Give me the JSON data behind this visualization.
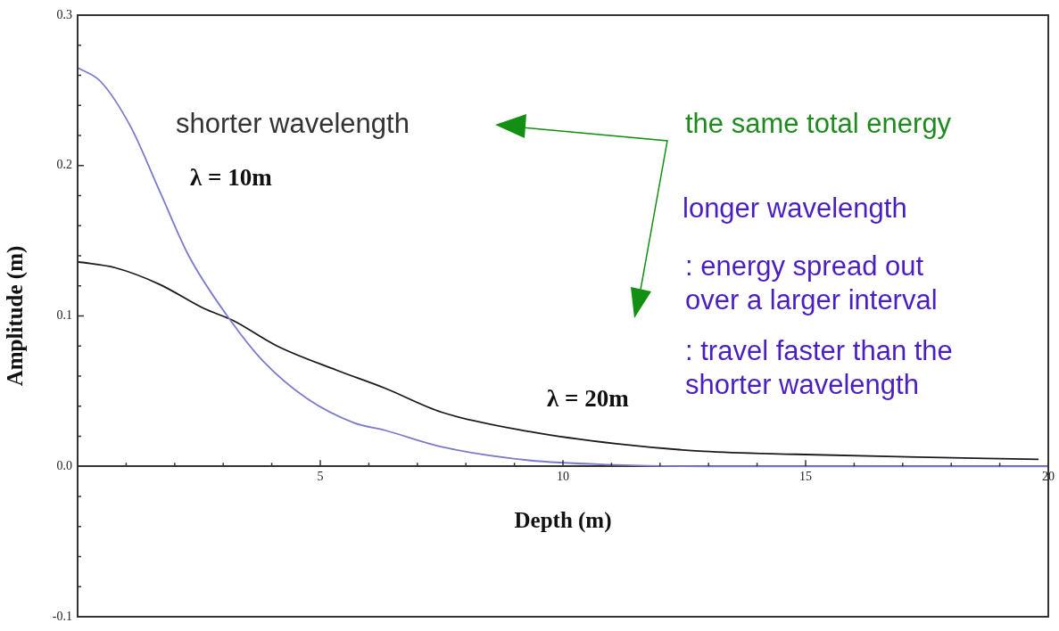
{
  "chart_data": {
    "type": "line",
    "xlabel": "Depth (m)",
    "ylabel": "Amplitude (m)",
    "xlim": [
      0,
      20
    ],
    "ylim": [
      -0.1,
      0.3
    ],
    "xticks": [
      5,
      10,
      15,
      20
    ],
    "yticks": [
      {
        "value": -0.1,
        "label": "-0.1"
      },
      {
        "value": 0,
        "label": "0.0"
      },
      {
        "value": 0.1,
        "label": "0.1"
      },
      {
        "value": 0.2,
        "label": "0.2"
      },
      {
        "value": 0.3,
        "label": "0.3"
      }
    ],
    "grid": false,
    "legend": false,
    "marker": "none",
    "line_style": "solid",
    "series": [
      {
        "color": "#7b7bc8",
        "x": [
          0,
          0.47,
          1.09,
          1.69,
          2.29,
          3.15,
          3.82,
          4.73,
          5.69,
          6.33,
          7.5,
          9.3,
          11.1,
          13,
          15,
          17,
          20
        ],
        "values": [
          0.265,
          0.256,
          0.226,
          0.183,
          0.14,
          0.097,
          0.07,
          0.045,
          0.029,
          0.024,
          0.013,
          0.004,
          0.001,
          0,
          0,
          0,
          0
        ]
      },
      {
        "color": "#1a1a1a",
        "x": [
          0,
          0.78,
          1.69,
          2.6,
          3.2,
          4.11,
          5.33,
          6.33,
          7.5,
          9.33,
          11.1,
          12.9,
          14.8,
          16.9,
          19.8
        ],
        "values": [
          0.136,
          0.132,
          0.121,
          0.105,
          0.097,
          0.08,
          0.064,
          0.052,
          0.036,
          0.023,
          0.015,
          0.01,
          0.008,
          0.0064,
          0.0047
        ]
      }
    ],
    "annotations": [
      "shorter wavelength",
      "λ = 10m",
      "the same total energy",
      "longer wavelength",
      ": energy spread out\nover a larger interval",
      ": travel faster than the\nshorter wavelength",
      "λ = 20m"
    ]
  }
}
